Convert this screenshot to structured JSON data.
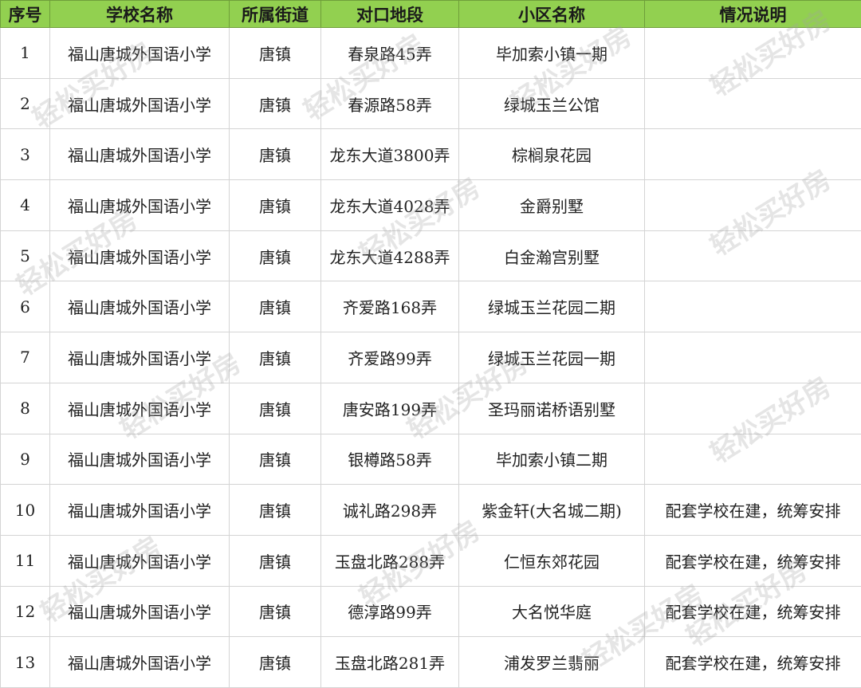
{
  "headers": [
    "序号",
    "学校名称",
    "所属街道",
    "对口地段",
    "小区名称",
    "情况说明"
  ],
  "rows": [
    [
      "1",
      "福山唐城外国语小学",
      "唐镇",
      "春泉路45弄",
      "毕加索小镇一期",
      ""
    ],
    [
      "2",
      "福山唐城外国语小学",
      "唐镇",
      "春源路58弄",
      "绿城玉兰公馆",
      ""
    ],
    [
      "3",
      "福山唐城外国语小学",
      "唐镇",
      "龙东大道3800弄",
      "棕榈泉花园",
      ""
    ],
    [
      "4",
      "福山唐城外国语小学",
      "唐镇",
      "龙东大道4028弄",
      "金爵别墅",
      ""
    ],
    [
      "5",
      "福山唐城外国语小学",
      "唐镇",
      "龙东大道4288弄",
      "白金瀚宫别墅",
      ""
    ],
    [
      "6",
      "福山唐城外国语小学",
      "唐镇",
      "齐爱路168弄",
      "绿城玉兰花园二期",
      ""
    ],
    [
      "7",
      "福山唐城外国语小学",
      "唐镇",
      "齐爱路99弄",
      "绿城玉兰花园一期",
      ""
    ],
    [
      "8",
      "福山唐城外国语小学",
      "唐镇",
      "唐安路199弄",
      "圣玛丽诺桥语别墅",
      ""
    ],
    [
      "9",
      "福山唐城外国语小学",
      "唐镇",
      "银樽路58弄",
      "毕加索小镇二期",
      ""
    ],
    [
      "10",
      "福山唐城外国语小学",
      "唐镇",
      "诚礼路298弄",
      "紫金轩(大名城二期)",
      "配套学校在建，统筹安排"
    ],
    [
      "11",
      "福山唐城外国语小学",
      "唐镇",
      "玉盘北路288弄",
      "仁恒东郊花园",
      "配套学校在建，统筹安排"
    ],
    [
      "12",
      "福山唐城外国语小学",
      "唐镇",
      "德淳路99弄",
      "大名悦华庭",
      "配套学校在建，统筹安排"
    ],
    [
      "13",
      "福山唐城外国语小学",
      "唐镇",
      "玉盘北路281弄",
      "浦发罗兰翡丽",
      "配套学校在建，统筹安排"
    ]
  ],
  "watermark": "轻松买好房",
  "colors": {
    "header_bg": "#92d050",
    "grid": "#d4d4d4"
  }
}
